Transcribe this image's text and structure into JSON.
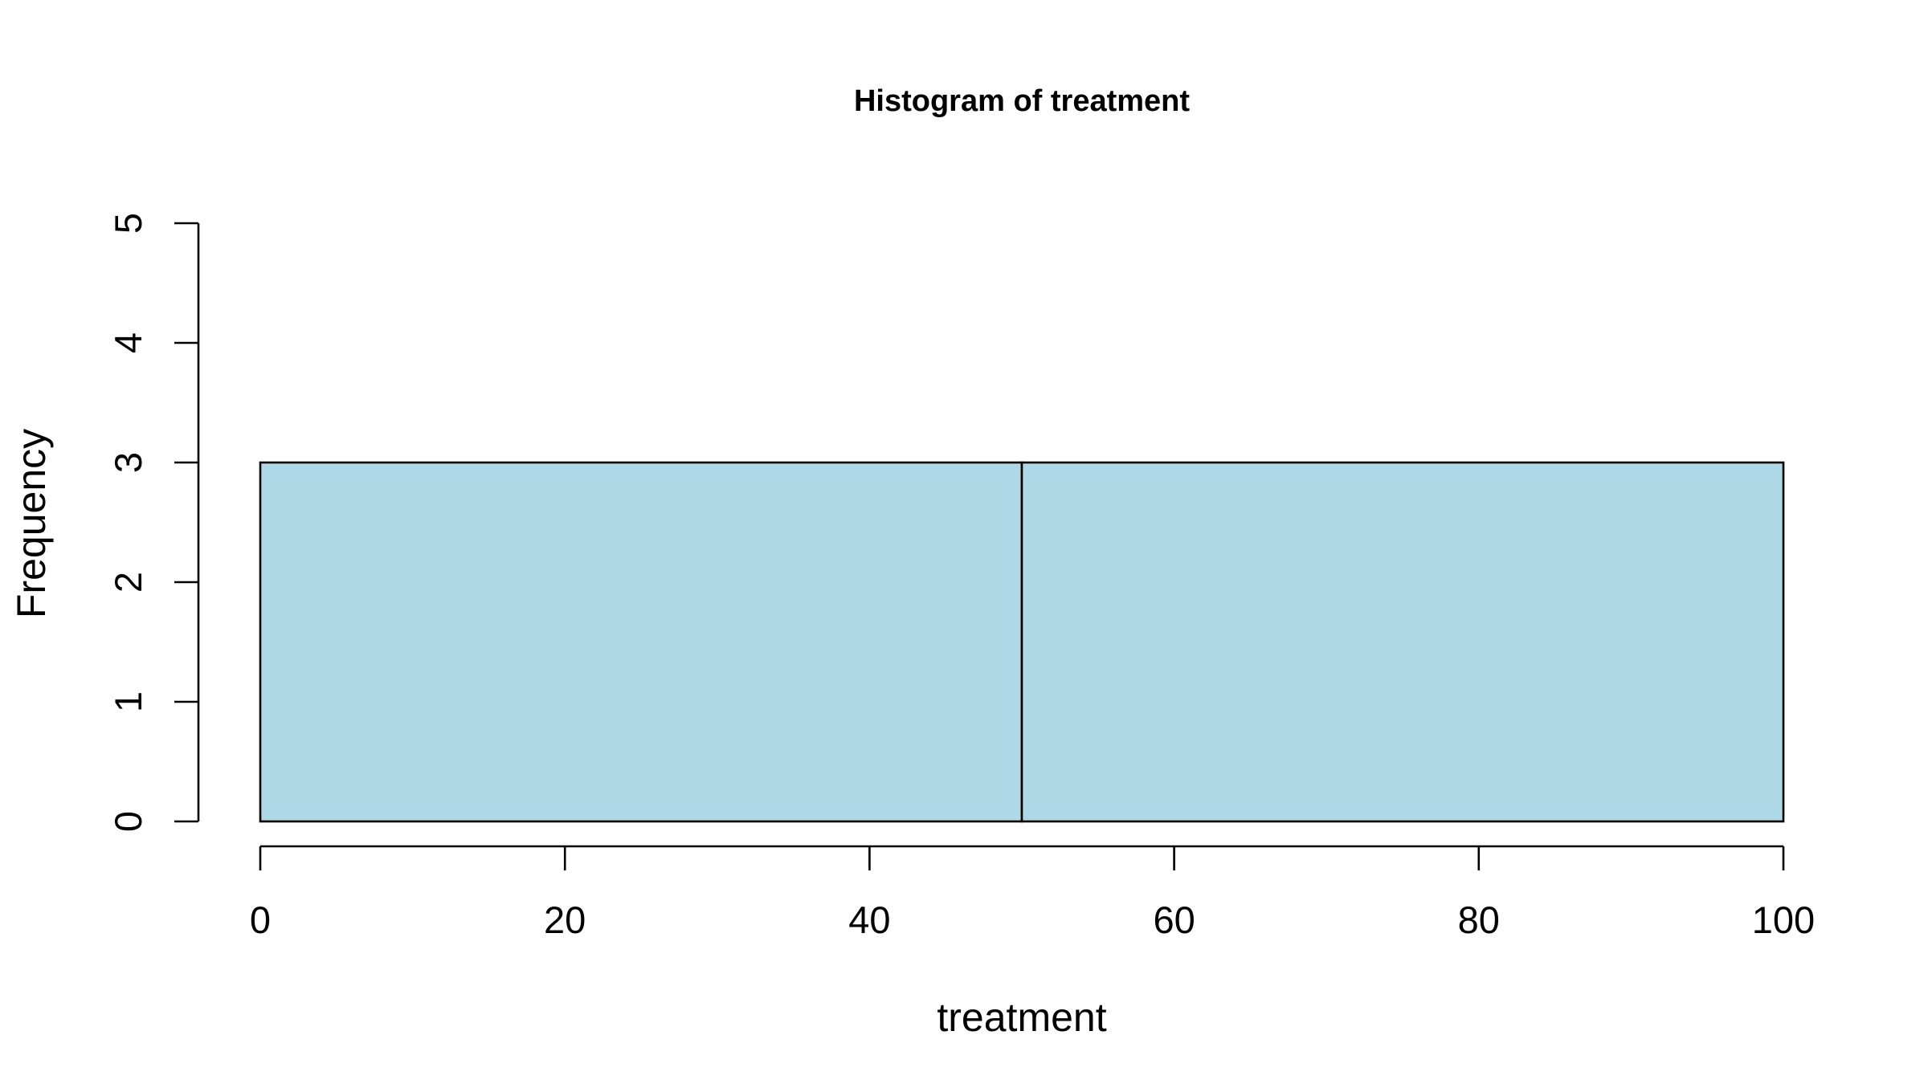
{
  "chart_data": {
    "type": "bar",
    "title": "Histogram of treatment",
    "xlabel": "treatment",
    "ylabel": "Frequency",
    "bins": [
      {
        "start": 0,
        "end": 50,
        "count": 3
      },
      {
        "start": 50,
        "end": 100,
        "count": 3
      }
    ],
    "xlim": [
      0,
      100
    ],
    "ylim": [
      0,
      5
    ],
    "x_ticks": [
      0,
      20,
      40,
      60,
      80,
      100
    ],
    "y_ticks": [
      0,
      1,
      2,
      3,
      4,
      5
    ],
    "bar_color": "#add8e6",
    "edge_color": "#000000",
    "grid": false,
    "legend": "none"
  }
}
